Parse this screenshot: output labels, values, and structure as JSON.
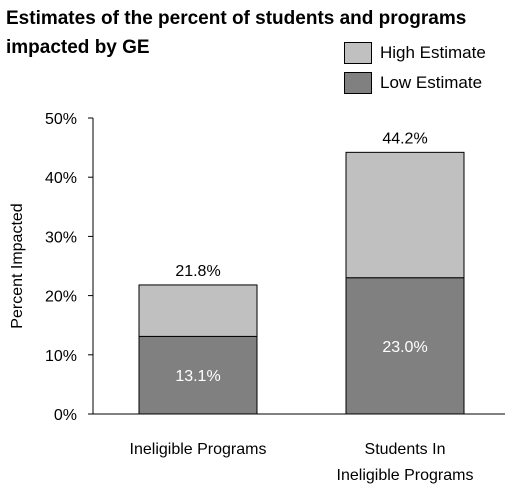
{
  "chart_data": {
    "type": "bar",
    "stacked": true,
    "title": "Estimates of the percent of students and programs impacted by GE",
    "title_lines": [
      "Estimates of the percent of students and programs",
      "impacted by GE"
    ],
    "xlabel": "",
    "ylabel": "Percent Impacted",
    "ylim": [
      0,
      50
    ],
    "yticks": [
      "0%",
      "10%",
      "20%",
      "30%",
      "40%",
      "50%"
    ],
    "grid": false,
    "legend_position": "top-right",
    "categories": [
      [
        "Ineligible Programs"
      ],
      [
        "Students In",
        "Ineligible Programs"
      ]
    ],
    "series": [
      {
        "name": "Low Estimate",
        "values": [
          13.1,
          23.0
        ],
        "labels": [
          "13.1%",
          "23.0%"
        ],
        "color": "#808080"
      },
      {
        "name": "High Estimate",
        "totals": [
          21.8,
          44.2
        ],
        "labels": [
          "21.8%",
          "44.2%"
        ],
        "color": "#c0c0c0"
      }
    ],
    "legend": [
      {
        "name": "High Estimate",
        "color": "#c0c0c0"
      },
      {
        "name": "Low Estimate",
        "color": "#808080"
      }
    ]
  }
}
